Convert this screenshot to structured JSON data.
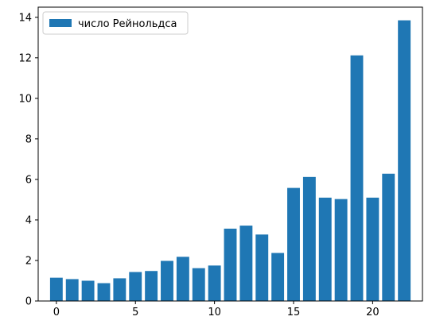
{
  "colors": {
    "bar": "#1f77b4",
    "axis": "#000000",
    "background": "#ffffff",
    "legend_border": "#cccccc"
  },
  "chart_data": {
    "type": "bar",
    "title": "",
    "xlabel": "",
    "ylabel": "",
    "legend": {
      "entries": [
        "число Рейнольдса"
      ],
      "placement": "top-left"
    },
    "grid": false,
    "x": [
      0,
      1,
      2,
      3,
      4,
      5,
      6,
      7,
      8,
      9,
      10,
      11,
      12,
      13,
      14,
      15,
      16,
      17,
      18,
      19,
      20,
      21,
      22
    ],
    "series": [
      {
        "name": "число Рейнольдса",
        "values": [
          1.15,
          1.08,
          1.0,
          0.88,
          1.12,
          1.43,
          1.48,
          1.98,
          2.18,
          1.62,
          1.75,
          3.57,
          3.72,
          3.28,
          2.37,
          5.58,
          6.12,
          5.1,
          5.03,
          12.12,
          5.1,
          6.28,
          13.85
        ]
      }
    ],
    "xlim": [
      -1.15,
      23.15
    ],
    "ylim": [
      0,
      14.5
    ],
    "xticks": [
      0,
      5,
      10,
      15,
      20
    ],
    "yticks": [
      0,
      2,
      4,
      6,
      8,
      10,
      12,
      14
    ],
    "xtick_labels": [
      "0",
      "5",
      "10",
      "15",
      "20"
    ],
    "ytick_labels": [
      "0",
      "2",
      "4",
      "6",
      "8",
      "10",
      "12",
      "14"
    ]
  }
}
